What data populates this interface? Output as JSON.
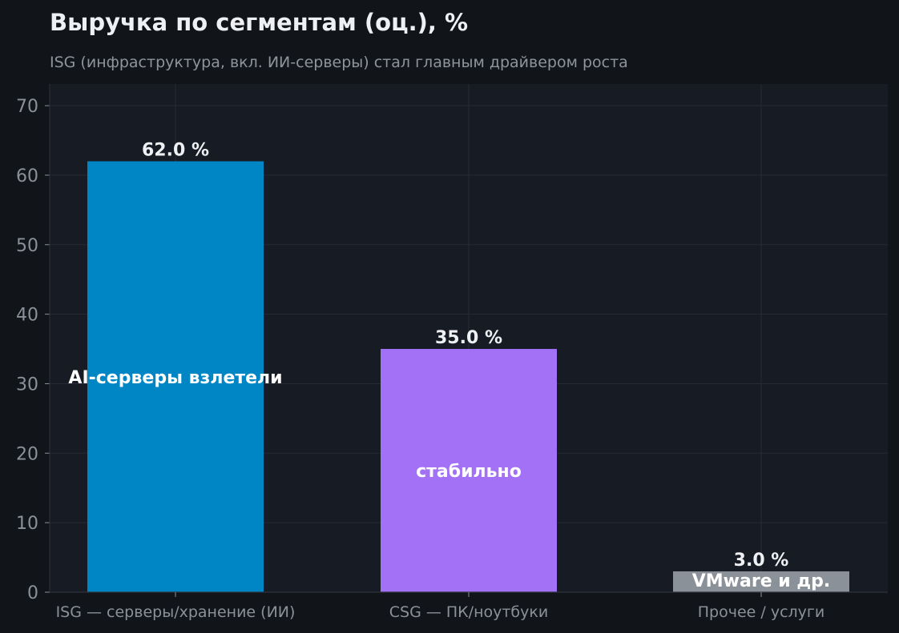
{
  "colors": {
    "page_bg": "#111519",
    "plot_bg": "#171b23",
    "grid": "#262b35",
    "axis_text": "#8b9099",
    "title_text": "#eef0f3",
    "subtitle_text": "#8f949c"
  },
  "chart_data": {
    "type": "bar",
    "title": "Выручка по сегментам (оц.), %",
    "subtitle": "ISG (инфраструктура, вкл. ИИ-серверы) стал главным драйвером роста",
    "xlabel": "",
    "ylabel": "",
    "ylim": [
      0,
      73
    ],
    "yticks": [
      0,
      10,
      20,
      30,
      40,
      50,
      60,
      70
    ],
    "grid": true,
    "categories": [
      "ISG — серверы/хранение (ИИ)",
      "CSG — ПК/ноутбуки",
      "Прочее / услуги"
    ],
    "values": [
      62.0,
      35.0,
      3.0
    ],
    "value_labels": [
      "62.0 %",
      "35.0 %",
      "3.0 %"
    ],
    "bar_colors": [
      "#0086c4",
      "#a371f5",
      "#8b9199"
    ],
    "annotations": [
      "AI-серверы взлетели",
      "стабильно",
      "VMware и др."
    ]
  }
}
